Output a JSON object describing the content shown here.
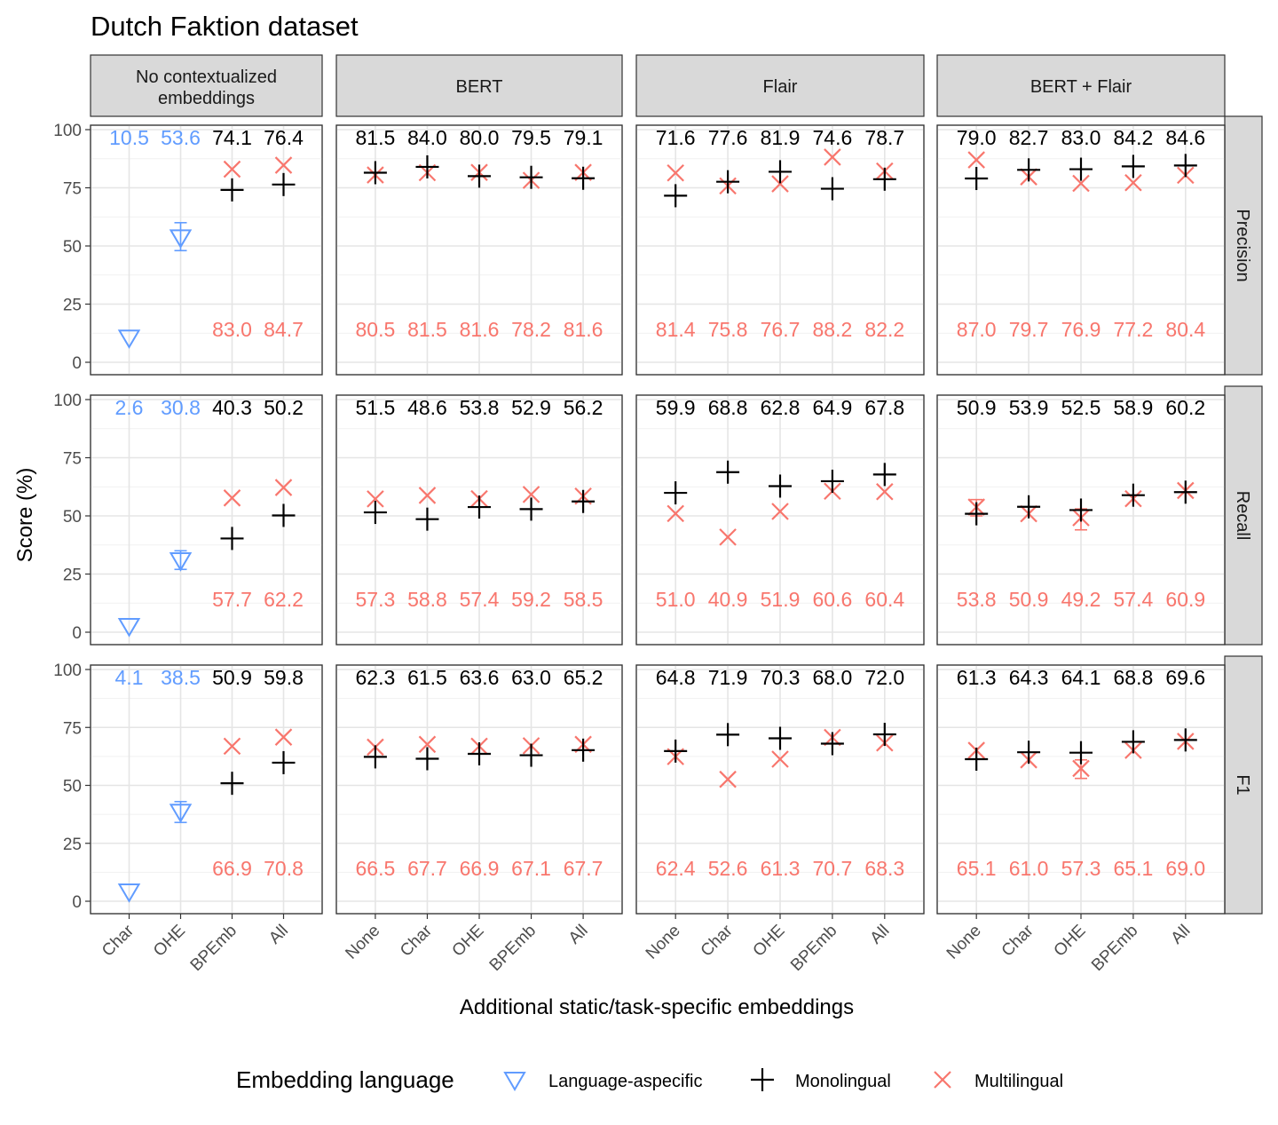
{
  "chart_data": {
    "type": "scatter",
    "title": "Dutch Faktion dataset",
    "xlabel": "Additional static/task-specific embeddings",
    "ylabel": "Score (%)",
    "ylim": [
      0,
      100
    ],
    "yticks": [
      "0",
      "25",
      "50",
      "75",
      "100"
    ],
    "grid": true,
    "legend": {
      "title": "Embedding language",
      "position": "bottom",
      "entries": [
        "Language-aspecific",
        "Monolingual",
        "Multilingual"
      ]
    },
    "colors": {
      "language_aspecific": "#619CFF",
      "monolingual": "#000000",
      "multilingual": "#F8766D"
    },
    "columns": [
      {
        "label": "No contextualized embeddings",
        "categories": [
          "Char",
          "OHE",
          "BPEmb",
          "All"
        ],
        "language_aspecific_categories": [
          "Char",
          "OHE"
        ],
        "rows": {
          "Precision": {
            "top": [
              "10.5",
              "53.6",
              "74.1",
              "76.4"
            ],
            "bottom": [
              "",
              "",
              "83.0",
              "84.7"
            ],
            "mono": [
              10.5,
              53.6,
              74.1,
              76.4
            ],
            "multi": [
              null,
              null,
              83.0,
              84.7
            ],
            "err_lo": [
              null,
              48,
              null,
              null
            ],
            "err_hi": [
              null,
              60,
              null,
              null
            ]
          },
          "Recall": {
            "top": [
              "2.6",
              "30.8",
              "40.3",
              "50.2"
            ],
            "bottom": [
              "",
              "",
              "57.7",
              "62.2"
            ],
            "mono": [
              2.6,
              30.8,
              40.3,
              50.2
            ],
            "multi": [
              null,
              null,
              57.7,
              62.2
            ],
            "err_lo": [
              null,
              27,
              null,
              null
            ],
            "err_hi": [
              null,
              35,
              null,
              null
            ]
          },
          "F1": {
            "top": [
              "4.1",
              "38.5",
              "50.9",
              "59.8"
            ],
            "bottom": [
              "",
              "",
              "66.9",
              "70.8"
            ],
            "mono": [
              4.1,
              38.5,
              50.9,
              59.8
            ],
            "multi": [
              null,
              null,
              66.9,
              70.8
            ],
            "err_lo": [
              null,
              34,
              null,
              null
            ],
            "err_hi": [
              null,
              43,
              null,
              null
            ]
          }
        }
      },
      {
        "label": "BERT",
        "categories": [
          "None",
          "Char",
          "OHE",
          "BPEmb",
          "All"
        ],
        "language_aspecific_categories": [],
        "rows": {
          "Precision": {
            "top": [
              "81.5",
              "84.0",
              "80.0",
              "79.5",
              "79.1"
            ],
            "bottom": [
              "80.5",
              "81.5",
              "81.6",
              "78.2",
              "81.6"
            ],
            "mono": [
              81.5,
              84.0,
              80.0,
              79.5,
              79.1
            ],
            "multi": [
              80.5,
              81.5,
              81.6,
              78.2,
              81.6
            ]
          },
          "Recall": {
            "top": [
              "51.5",
              "48.6",
              "53.8",
              "52.9",
              "56.2"
            ],
            "bottom": [
              "57.3",
              "58.8",
              "57.4",
              "59.2",
              "58.5"
            ],
            "mono": [
              51.5,
              48.6,
              53.8,
              52.9,
              56.2
            ],
            "multi": [
              57.3,
              58.8,
              57.4,
              59.2,
              58.5
            ]
          },
          "F1": {
            "top": [
              "62.3",
              "61.5",
              "63.6",
              "63.0",
              "65.2"
            ],
            "bottom": [
              "66.5",
              "67.7",
              "66.9",
              "67.1",
              "67.7"
            ],
            "mono": [
              62.3,
              61.5,
              63.6,
              63.0,
              65.2
            ],
            "multi": [
              66.5,
              67.7,
              66.9,
              67.1,
              67.7
            ]
          }
        }
      },
      {
        "label": "Flair",
        "categories": [
          "None",
          "Char",
          "OHE",
          "BPEmb",
          "All"
        ],
        "language_aspecific_categories": [],
        "rows": {
          "Precision": {
            "top": [
              "71.6",
              "77.6",
              "81.9",
              "74.6",
              "78.7"
            ],
            "bottom": [
              "81.4",
              "75.8",
              "76.7",
              "88.2",
              "82.2"
            ],
            "mono": [
              71.6,
              77.6,
              81.9,
              74.6,
              78.7
            ],
            "multi": [
              81.4,
              75.8,
              76.7,
              88.2,
              82.2
            ]
          },
          "Recall": {
            "top": [
              "59.9",
              "68.8",
              "62.8",
              "64.9",
              "67.8"
            ],
            "bottom": [
              "51.0",
              "40.9",
              "51.9",
              "60.6",
              "60.4"
            ],
            "mono": [
              59.9,
              68.8,
              62.8,
              64.9,
              67.8
            ],
            "multi": [
              51.0,
              40.9,
              51.9,
              60.6,
              60.4
            ]
          },
          "F1": {
            "top": [
              "64.8",
              "71.9",
              "70.3",
              "68.0",
              "72.0"
            ],
            "bottom": [
              "62.4",
              "52.6",
              "61.3",
              "70.7",
              "68.3"
            ],
            "mono": [
              64.8,
              71.9,
              70.3,
              68.0,
              72.0
            ],
            "multi": [
              62.4,
              52.6,
              61.3,
              70.7,
              68.3
            ]
          }
        }
      },
      {
        "label": "BERT + Flair",
        "categories": [
          "None",
          "Char",
          "OHE",
          "BPEmb",
          "All"
        ],
        "language_aspecific_categories": [],
        "rows": {
          "Precision": {
            "top": [
              "79.0",
              "82.7",
              "83.0",
              "84.2",
              "84.6"
            ],
            "bottom": [
              "87.0",
              "79.7",
              "76.9",
              "77.2",
              "80.4"
            ],
            "mono": [
              79.0,
              82.7,
              83.0,
              84.2,
              84.6
            ],
            "multi": [
              87.0,
              79.7,
              76.9,
              77.2,
              80.4
            ]
          },
          "Recall": {
            "top": [
              "50.9",
              "53.9",
              "52.5",
              "58.9",
              "60.2"
            ],
            "bottom": [
              "53.8",
              "50.9",
              "49.2",
              "57.4",
              "60.9"
            ],
            "mono": [
              50.9,
              53.9,
              52.5,
              58.9,
              60.2
            ],
            "multi": [
              53.8,
              50.9,
              49.2,
              57.4,
              60.9
            ],
            "multi_err_lo": [
              50,
              null,
              44,
              null,
              null
            ],
            "multi_err_hi": [
              57,
              null,
              53,
              null,
              null
            ]
          },
          "F1": {
            "top": [
              "61.3",
              "64.3",
              "64.1",
              "68.8",
              "69.6"
            ],
            "bottom": [
              "65.1",
              "61.0",
              "57.3",
              "65.1",
              "69.0"
            ],
            "mono": [
              61.3,
              64.3,
              64.1,
              68.8,
              69.6
            ],
            "multi": [
              65.1,
              61.0,
              57.3,
              65.1,
              69.0
            ],
            "multi_err_lo": [
              null,
              null,
              53,
              null,
              null
            ],
            "multi_err_hi": [
              null,
              null,
              61,
              null,
              null
            ]
          }
        }
      }
    ],
    "row_labels": [
      "Precision",
      "Recall",
      "F1"
    ]
  }
}
